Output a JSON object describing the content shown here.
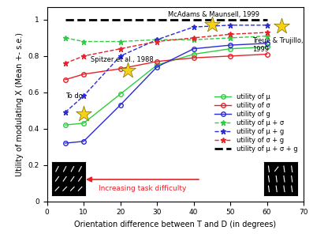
{
  "chart_data": {
    "type": "line",
    "x_label": "Orientation difference between T and D (in degrees)",
    "y_label": "Utility of modulating X (Mean +- s.e.)",
    "xlim": [
      0,
      70
    ],
    "xticks": [
      0,
      10,
      20,
      30,
      40,
      50,
      60,
      70
    ],
    "ylim": [
      0,
      1.07
    ],
    "yticks": [
      0,
      0.2,
      0.4,
      0.6,
      0.8,
      1
    ],
    "x": [
      5,
      10,
      20,
      30,
      40,
      50,
      60
    ],
    "legend": "lower right",
    "series": [
      {
        "name": "utility of μ",
        "color": "#2ecc40",
        "marker": "circle",
        "line_style": "solid",
        "values": [
          0.42,
          0.43,
          0.59,
          0.75,
          0.81,
          0.84,
          0.85
        ]
      },
      {
        "name": "utility of σ",
        "color": "#e8202a",
        "marker": "circle",
        "line_style": "solid",
        "values": [
          0.67,
          0.7,
          0.73,
          0.77,
          0.79,
          0.8,
          0.81
        ]
      },
      {
        "name": "utility of g",
        "color": "#2b2bd6",
        "marker": "circle",
        "line_style": "solid",
        "values": [
          0.32,
          0.33,
          0.53,
          0.74,
          0.84,
          0.86,
          0.87
        ]
      },
      {
        "name": "utility of μ + σ",
        "color": "#2ecc40",
        "marker": "star",
        "line_style": "dashed",
        "values": [
          0.9,
          0.88,
          0.88,
          0.89,
          0.89,
          0.9,
          0.91
        ]
      },
      {
        "name": "utility of μ + g",
        "color": "#2b2bd6",
        "marker": "star",
        "line_style": "dashed",
        "values": [
          0.49,
          0.58,
          0.8,
          0.89,
          0.96,
          0.97,
          0.97
        ]
      },
      {
        "name": "utility of σ + g",
        "color": "#e8202a",
        "marker": "star",
        "line_style": "dashed",
        "values": [
          0.76,
          0.8,
          0.84,
          0.88,
          0.9,
          0.92,
          0.93
        ]
      },
      {
        "name": "utility of μ + σ + g",
        "color": "#000000",
        "marker": "none",
        "line_style": "dashed",
        "values": [
          1.0,
          1.0,
          1.0,
          1.0,
          1.0,
          1.0,
          1.0
        ]
      }
    ],
    "highlights": {
      "color": "#f7d116",
      "marker": "star",
      "x": [
        10,
        22,
        45,
        64
      ],
      "y": [
        0.48,
        0.72,
        0.975,
        0.965
      ]
    },
    "annotations": [
      {
        "text": "McAdams & Maunsell, 1999",
        "x": 33,
        "y": 1.03
      },
      {
        "text": "Treue & Trujillo,\n1999",
        "x": 56,
        "y": 0.86
      },
      {
        "text": "Spitzer et al., 1988",
        "x": 12,
        "y": 0.78
      },
      {
        "text": "To do",
        "x": 5,
        "y": 0.58
      }
    ],
    "arrow": {
      "text": "Increasing task difficulty",
      "x_from": 42,
      "x_to": 10,
      "y": 0.12,
      "color": "#e8202a"
    }
  }
}
